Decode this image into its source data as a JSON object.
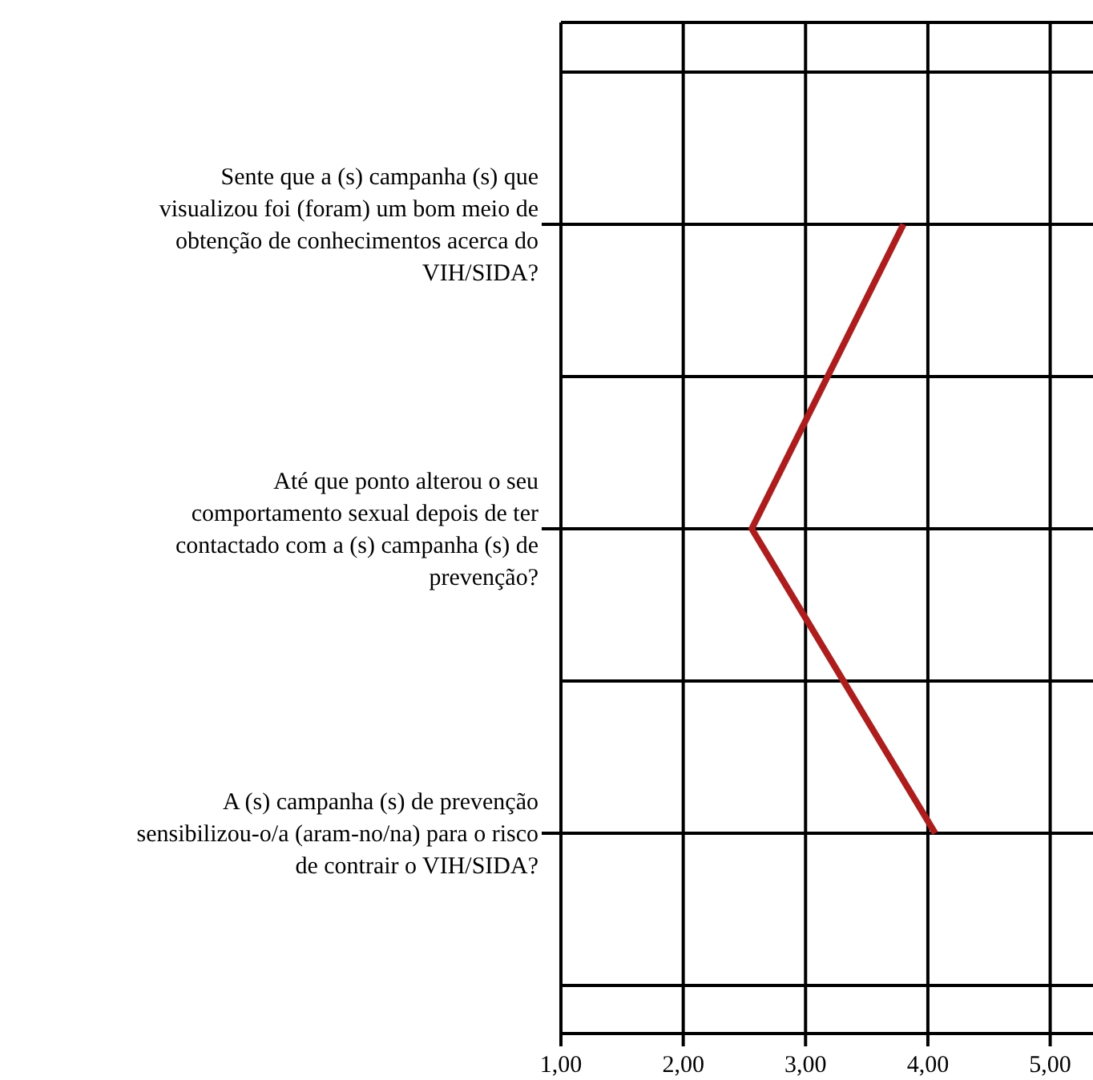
{
  "chart_data": {
    "type": "line",
    "orientation": "horizontal",
    "categories": [
      "Sente que a (s) campanha (s) que visualizou foi (foram) um bom meio de obtenção de conhecimentos acerca do VIH/SIDA?",
      "Até que ponto alterou o seu comportamento sexual depois de ter contactado com a (s) campanha (s) de prevenção?",
      "A (s) campanha (s) de prevenção sensibilizou-o/a (aram-no/na) para o risco de contrair o VIH/SIDA?"
    ],
    "series": [
      {
        "color": "#b01c1c",
        "values": [
          3.8,
          2.56,
          4.06
        ]
      }
    ],
    "xlim": [
      1,
      5.35
    ],
    "xticks": [
      {
        "value": 1,
        "label": "1,00"
      },
      {
        "value": 2,
        "label": "2,00"
      },
      {
        "value": 3,
        "label": "3,00"
      },
      {
        "value": 4,
        "label": "4,00"
      },
      {
        "value": 5,
        "label": "5,00"
      }
    ],
    "grid": true,
    "marker": "none",
    "line_style": "solid"
  }
}
